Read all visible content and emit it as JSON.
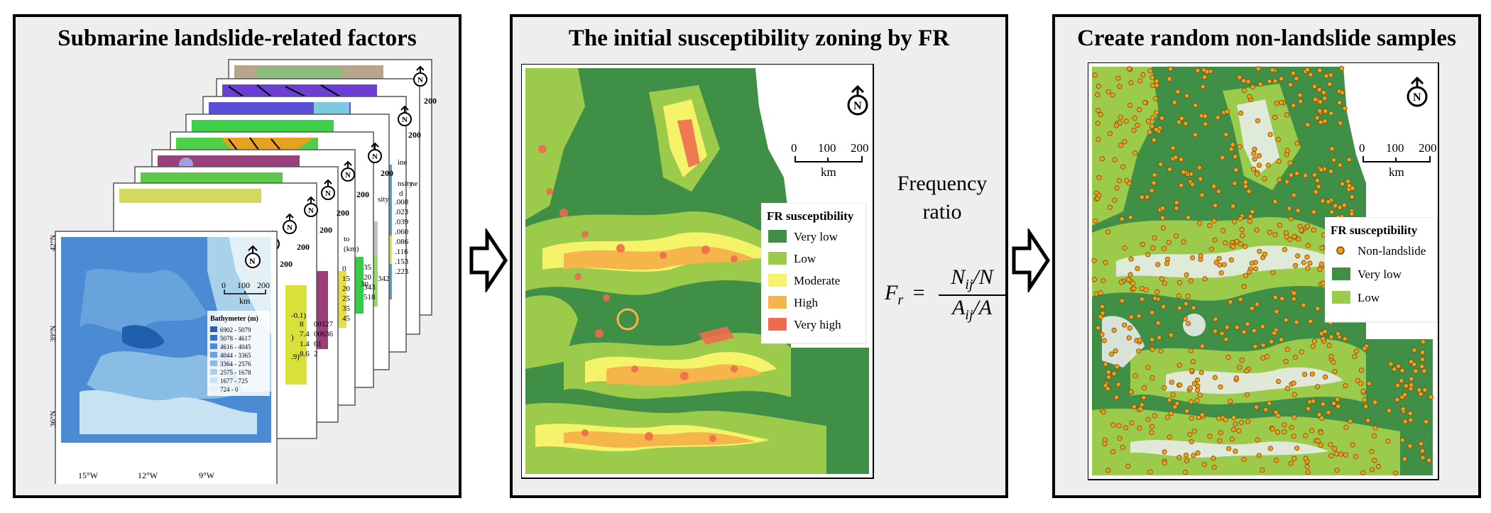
{
  "panels": {
    "factors": {
      "title": "Submarine landslide-related factors",
      "front_map": {
        "lat_labels": [
          "42°N",
          "39°N",
          "36°N"
        ],
        "lon_labels": [
          "15°W",
          "12°W",
          "9°W"
        ],
        "legend_title": "Bathymeter (m)",
        "legend_items": [
          "6902 - 5079",
          "5078 - 4617",
          "4616 - 4045",
          "4044 - 3365",
          "3364 - 2576",
          "2575 - 1678",
          "1677 - 725",
          "724 - 0"
        ],
        "scale_ticks": [
          "0",
          "100",
          "200"
        ],
        "scale_unit": "km",
        "north_label": "N"
      },
      "stack_fragments": [
        "-0.1)",
        ")",
        ".9)",
        "001",
        "006",
        "01",
        "2",
        "27",
        "36",
        "8",
        "7.4",
        "1.4",
        "8.6",
        "0",
        "15",
        "20",
        "25",
        "35",
        "45",
        "to",
        "(km)",
        "35",
        "20",
        "343",
        "518",
        "342",
        "30",
        "sity",
        "ine",
        "nsity",
        "d",
        ".008",
        ".023",
        ".039",
        ".060",
        ".086",
        ".116",
        ".153",
        ".223",
        "ne",
        "200",
        "200",
        "200",
        "200",
        "200",
        "200",
        "200",
        "200"
      ]
    },
    "zoning": {
      "title": "The initial susceptibility zoning by FR",
      "legend_title": "FR susceptibility",
      "legend_items": [
        "Very low",
        "Low",
        "Moderate",
        "High",
        "Very high"
      ],
      "scale_ticks": [
        "0",
        "100",
        "200"
      ],
      "scale_unit": "km",
      "north_label": "N"
    },
    "samples": {
      "title": "Create random non-landslide samples",
      "legend_title": "FR susceptibility",
      "legend_items": [
        "Non-landslide",
        "Very low",
        "Low"
      ],
      "scale_ticks": [
        "0",
        "100",
        "200"
      ],
      "scale_unit": "km",
      "north_label": "N"
    }
  },
  "formula": {
    "label_line1": "Frequency",
    "label_line2": "ratio",
    "lhs": "F",
    "lhs_sub": "r",
    "eq": "=",
    "num": "N",
    "num_sub": "ij",
    "num_tail": "/N",
    "den": "A",
    "den_sub": "ij",
    "den_tail": "/A"
  },
  "colors": {
    "very_low": "#3f8f46",
    "low": "#9ccb4c",
    "moderate": "#f4f36a",
    "high": "#f5b54a",
    "very_high": "#ee6b4f",
    "non_landslide": "#f0a020",
    "bathy": [
      "#1f5fae",
      "#2f74c6",
      "#4a8bd3",
      "#68a3dc",
      "#8abde4",
      "#a9d1ea",
      "#c7e2f0",
      "#e3f0f6"
    ]
  }
}
